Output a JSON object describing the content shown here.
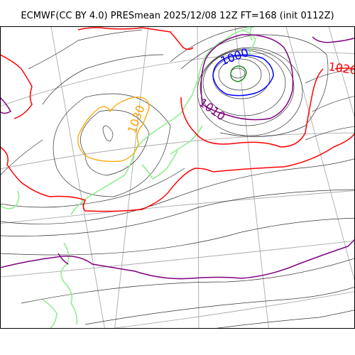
{
  "title": "ECMWF(CC BY 4.0) PRESmean 2025/12/08 12Z FT=168 (init 0112Z)",
  "colors": {
    "frame": "#000000",
    "graticule": "#aaaaaa",
    "isobar_base": "#333333",
    "coast": "#90ee90",
    "isobar_1020": "#ff0000",
    "isobar_1010": "#800080",
    "isobar_1000": "#0000ff",
    "isobar_990": "#008000",
    "isobar_1030": "#ffa500"
  },
  "contour_labels": [
    {
      "key": "label-1000",
      "text": "1000",
      "level": 1000
    },
    {
      "key": "label-1010",
      "text": "1010",
      "level": 1010
    },
    {
      "key": "label-1020",
      "text": "1020",
      "level": 1020
    },
    {
      "key": "label-1030",
      "text": "1030",
      "level": 1030
    }
  ]
}
